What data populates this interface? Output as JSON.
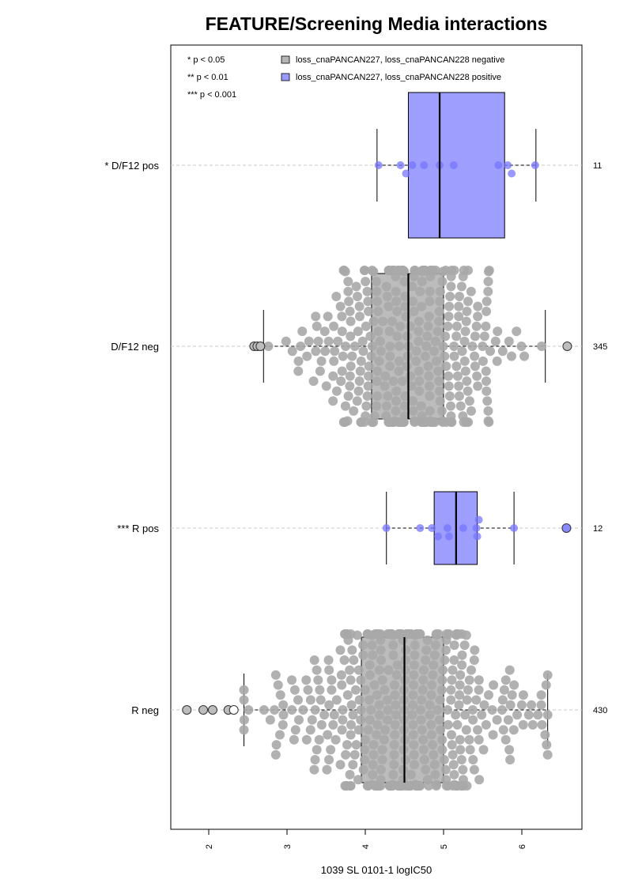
{
  "chart_data": {
    "type": "box",
    "title": "FEATURE/Screening Media interactions",
    "xlabel": "1039 SL 0101-1 logIC50",
    "xlim": [
      1.5,
      6.8
    ],
    "x_ticks": [
      2,
      3,
      4,
      5,
      6
    ],
    "x_tick_labels": [
      "2",
      "3",
      "4",
      "5",
      "6"
    ],
    "grid": false,
    "legend_position": "top",
    "significance_legend": [
      "* p < 0.05",
      "** p < 0.01",
      "*** p < 0.001"
    ],
    "legend": [
      {
        "label": "loss_cnaPANCAN227, loss_cnaPANCAN228 negative",
        "color": "#b5b5b5"
      },
      {
        "label": "loss_cnaPANCAN227, loss_cnaPANCAN228 positive",
        "color": "#9a9aff"
      }
    ],
    "colors": {
      "negative_box": "#bcbcbc",
      "positive_box": "#9e9eff",
      "negative_point": "#a9a9a9",
      "positive_point": "#7575ff"
    },
    "categories": [
      {
        "label": "* D/F12 pos",
        "count": "11",
        "group": "positive",
        "whisker_low": 4.15,
        "q1": 4.55,
        "median": 4.95,
        "q3": 5.78,
        "whisker_high": 6.18,
        "points": [
          4.17,
          4.45,
          4.52,
          4.6,
          4.75,
          4.95,
          5.13,
          5.7,
          5.82,
          5.87,
          6.17
        ],
        "outliers": []
      },
      {
        "label": "D/F12 neg",
        "count": "345",
        "group": "negative",
        "whisker_low": 2.7,
        "q1": 4.08,
        "median": 4.55,
        "q3": 5.0,
        "whisker_high": 6.3,
        "points": [],
        "outliers": [
          2.58,
          2.62,
          2.66,
          6.58
        ]
      },
      {
        "label": "*** R pos",
        "count": "12",
        "group": "positive",
        "whisker_low": 4.27,
        "q1": 4.88,
        "median": 5.16,
        "q3": 5.43,
        "whisker_high": 5.9,
        "points": [
          4.27,
          4.7,
          4.85,
          4.93,
          5.05,
          5.07,
          5.25,
          5.42,
          5.43,
          5.45,
          5.9,
          6.57
        ],
        "outliers": [
          6.57
        ]
      },
      {
        "label": "R neg",
        "count": "430",
        "group": "negative",
        "whisker_low": 2.45,
        "q1": 3.95,
        "median": 4.5,
        "q3": 5.0,
        "whisker_high": 6.33,
        "points": [],
        "outliers": [
          1.72,
          1.93,
          2.05,
          2.25,
          2.32
        ]
      }
    ]
  }
}
